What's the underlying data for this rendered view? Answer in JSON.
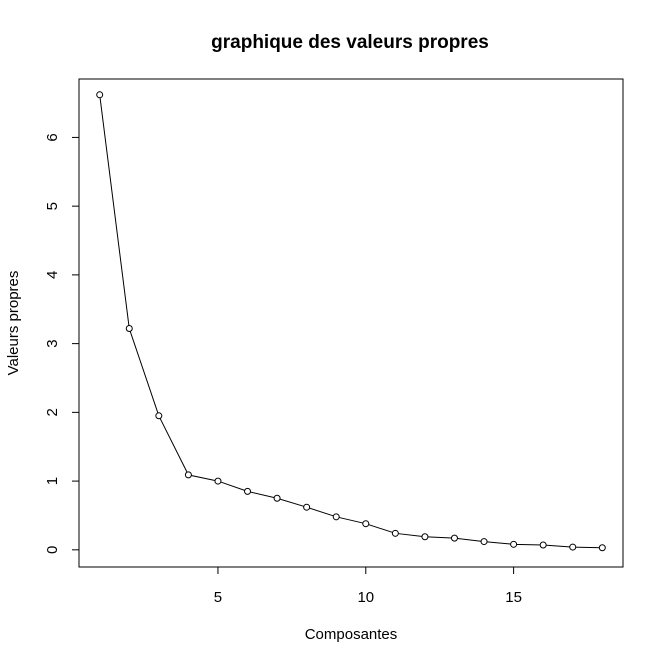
{
  "chart_data": {
    "type": "line",
    "title": "graphique des valeurs propres",
    "xlabel": "Composantes",
    "ylabel": "Valeurs propres",
    "xlim": [
      0.3,
      18.7
    ],
    "ylim": [
      -0.25,
      6.85
    ],
    "x_ticks": [
      5,
      10,
      15
    ],
    "x_tick_labels": [
      "5",
      "10",
      "15"
    ],
    "y_ticks": [
      0,
      1,
      2,
      3,
      4,
      5,
      6
    ],
    "y_tick_labels": [
      "0",
      "1",
      "2",
      "3",
      "4",
      "5",
      "6"
    ],
    "grid": false,
    "legend": "none",
    "marker": "open-circle",
    "series": [
      {
        "x": [
          1,
          2,
          3,
          4,
          5,
          6,
          7,
          8,
          9,
          10,
          11,
          12,
          13,
          14,
          15,
          16,
          17,
          18
        ],
        "values": [
          6.62,
          3.22,
          1.95,
          1.09,
          1.0,
          0.85,
          0.75,
          0.62,
          0.48,
          0.38,
          0.24,
          0.19,
          0.17,
          0.12,
          0.08,
          0.07,
          0.04,
          0.03
        ]
      }
    ]
  }
}
